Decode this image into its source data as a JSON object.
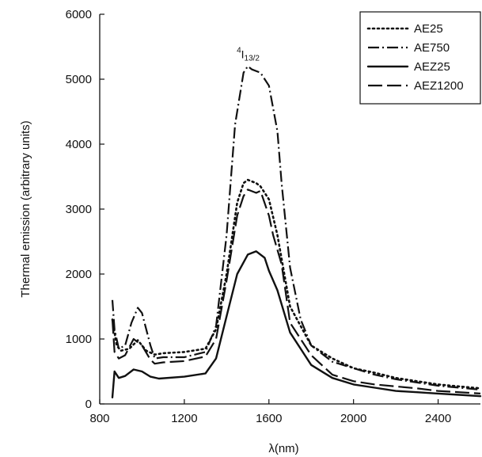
{
  "chart_data": {
    "type": "line",
    "title": "",
    "xlabel": "λ(nm)",
    "ylabel": "Thermal emission (arbitrary units)",
    "xlim": [
      800,
      2600
    ],
    "ylim": [
      0,
      6000
    ],
    "xticks": [
      800,
      1200,
      1600,
      2000,
      2400
    ],
    "yticks": [
      0,
      1000,
      2000,
      3000,
      4000,
      5000,
      6000
    ],
    "grid": false,
    "legend_position": "top-right",
    "annotation": {
      "base": "4",
      "letter": "I",
      "sub": "13/2",
      "x": 1560,
      "y": 5350
    },
    "series": [
      {
        "name": "AE25",
        "style": "dotted",
        "x": [
          860,
          880,
          900,
          940,
          980,
          1020,
          1060,
          1100,
          1200,
          1300,
          1350,
          1400,
          1450,
          1480,
          1500,
          1540,
          1560,
          1600,
          1640,
          1700,
          1800,
          1900,
          2000,
          2100,
          2200,
          2300,
          2400,
          2500,
          2600
        ],
        "y": [
          1300,
          900,
          820,
          850,
          980,
          820,
          760,
          780,
          800,
          850,
          1150,
          2000,
          3100,
          3400,
          3450,
          3400,
          3350,
          3150,
          2600,
          1500,
          900,
          700,
          550,
          480,
          400,
          350,
          300,
          270,
          240
        ]
      },
      {
        "name": "AE750",
        "style": "dash-dot",
        "x": [
          860,
          870,
          890,
          920,
          950,
          980,
          1000,
          1040,
          1060,
          1100,
          1200,
          1300,
          1350,
          1400,
          1440,
          1480,
          1500,
          1520,
          1560,
          1600,
          1640,
          1660,
          1700,
          1750,
          1800,
          1900,
          2000,
          2100,
          2200,
          2300,
          2400,
          2500,
          2600
        ],
        "y": [
          1600,
          1150,
          850,
          900,
          1250,
          1480,
          1400,
          900,
          700,
          720,
          720,
          800,
          1200,
          2600,
          4300,
          5100,
          5200,
          5150,
          5100,
          4900,
          4200,
          3400,
          2100,
          1300,
          900,
          650,
          550,
          450,
          380,
          330,
          280,
          250,
          220
        ]
      },
      {
        "name": "AEZ25",
        "style": "solid",
        "x": [
          860,
          870,
          890,
          920,
          960,
          1000,
          1040,
          1080,
          1200,
          1300,
          1350,
          1400,
          1450,
          1500,
          1540,
          1580,
          1600,
          1640,
          1700,
          1800,
          1900,
          2000,
          2100,
          2200,
          2300,
          2400,
          2500,
          2600
        ],
        "y": [
          100,
          500,
          400,
          430,
          530,
          500,
          420,
          390,
          420,
          470,
          700,
          1350,
          2000,
          2300,
          2350,
          2250,
          2050,
          1750,
          1100,
          600,
          400,
          300,
          250,
          200,
          180,
          160,
          140,
          120
        ]
      },
      {
        "name": "AEZ1200",
        "style": "long-dash",
        "x": [
          860,
          870,
          890,
          920,
          960,
          1000,
          1040,
          1060,
          1100,
          1200,
          1300,
          1350,
          1400,
          1450,
          1480,
          1500,
          1540,
          1560,
          1600,
          1620,
          1660,
          1700,
          1800,
          1900,
          2000,
          2100,
          2200,
          2300,
          2400,
          2500,
          2600
        ],
        "y": [
          1300,
          800,
          700,
          750,
          1000,
          900,
          680,
          620,
          640,
          660,
          730,
          1000,
          1900,
          2900,
          3200,
          3300,
          3250,
          3280,
          2900,
          2600,
          2150,
          1250,
          750,
          450,
          350,
          300,
          270,
          240,
          200,
          180,
          160
        ]
      }
    ]
  }
}
